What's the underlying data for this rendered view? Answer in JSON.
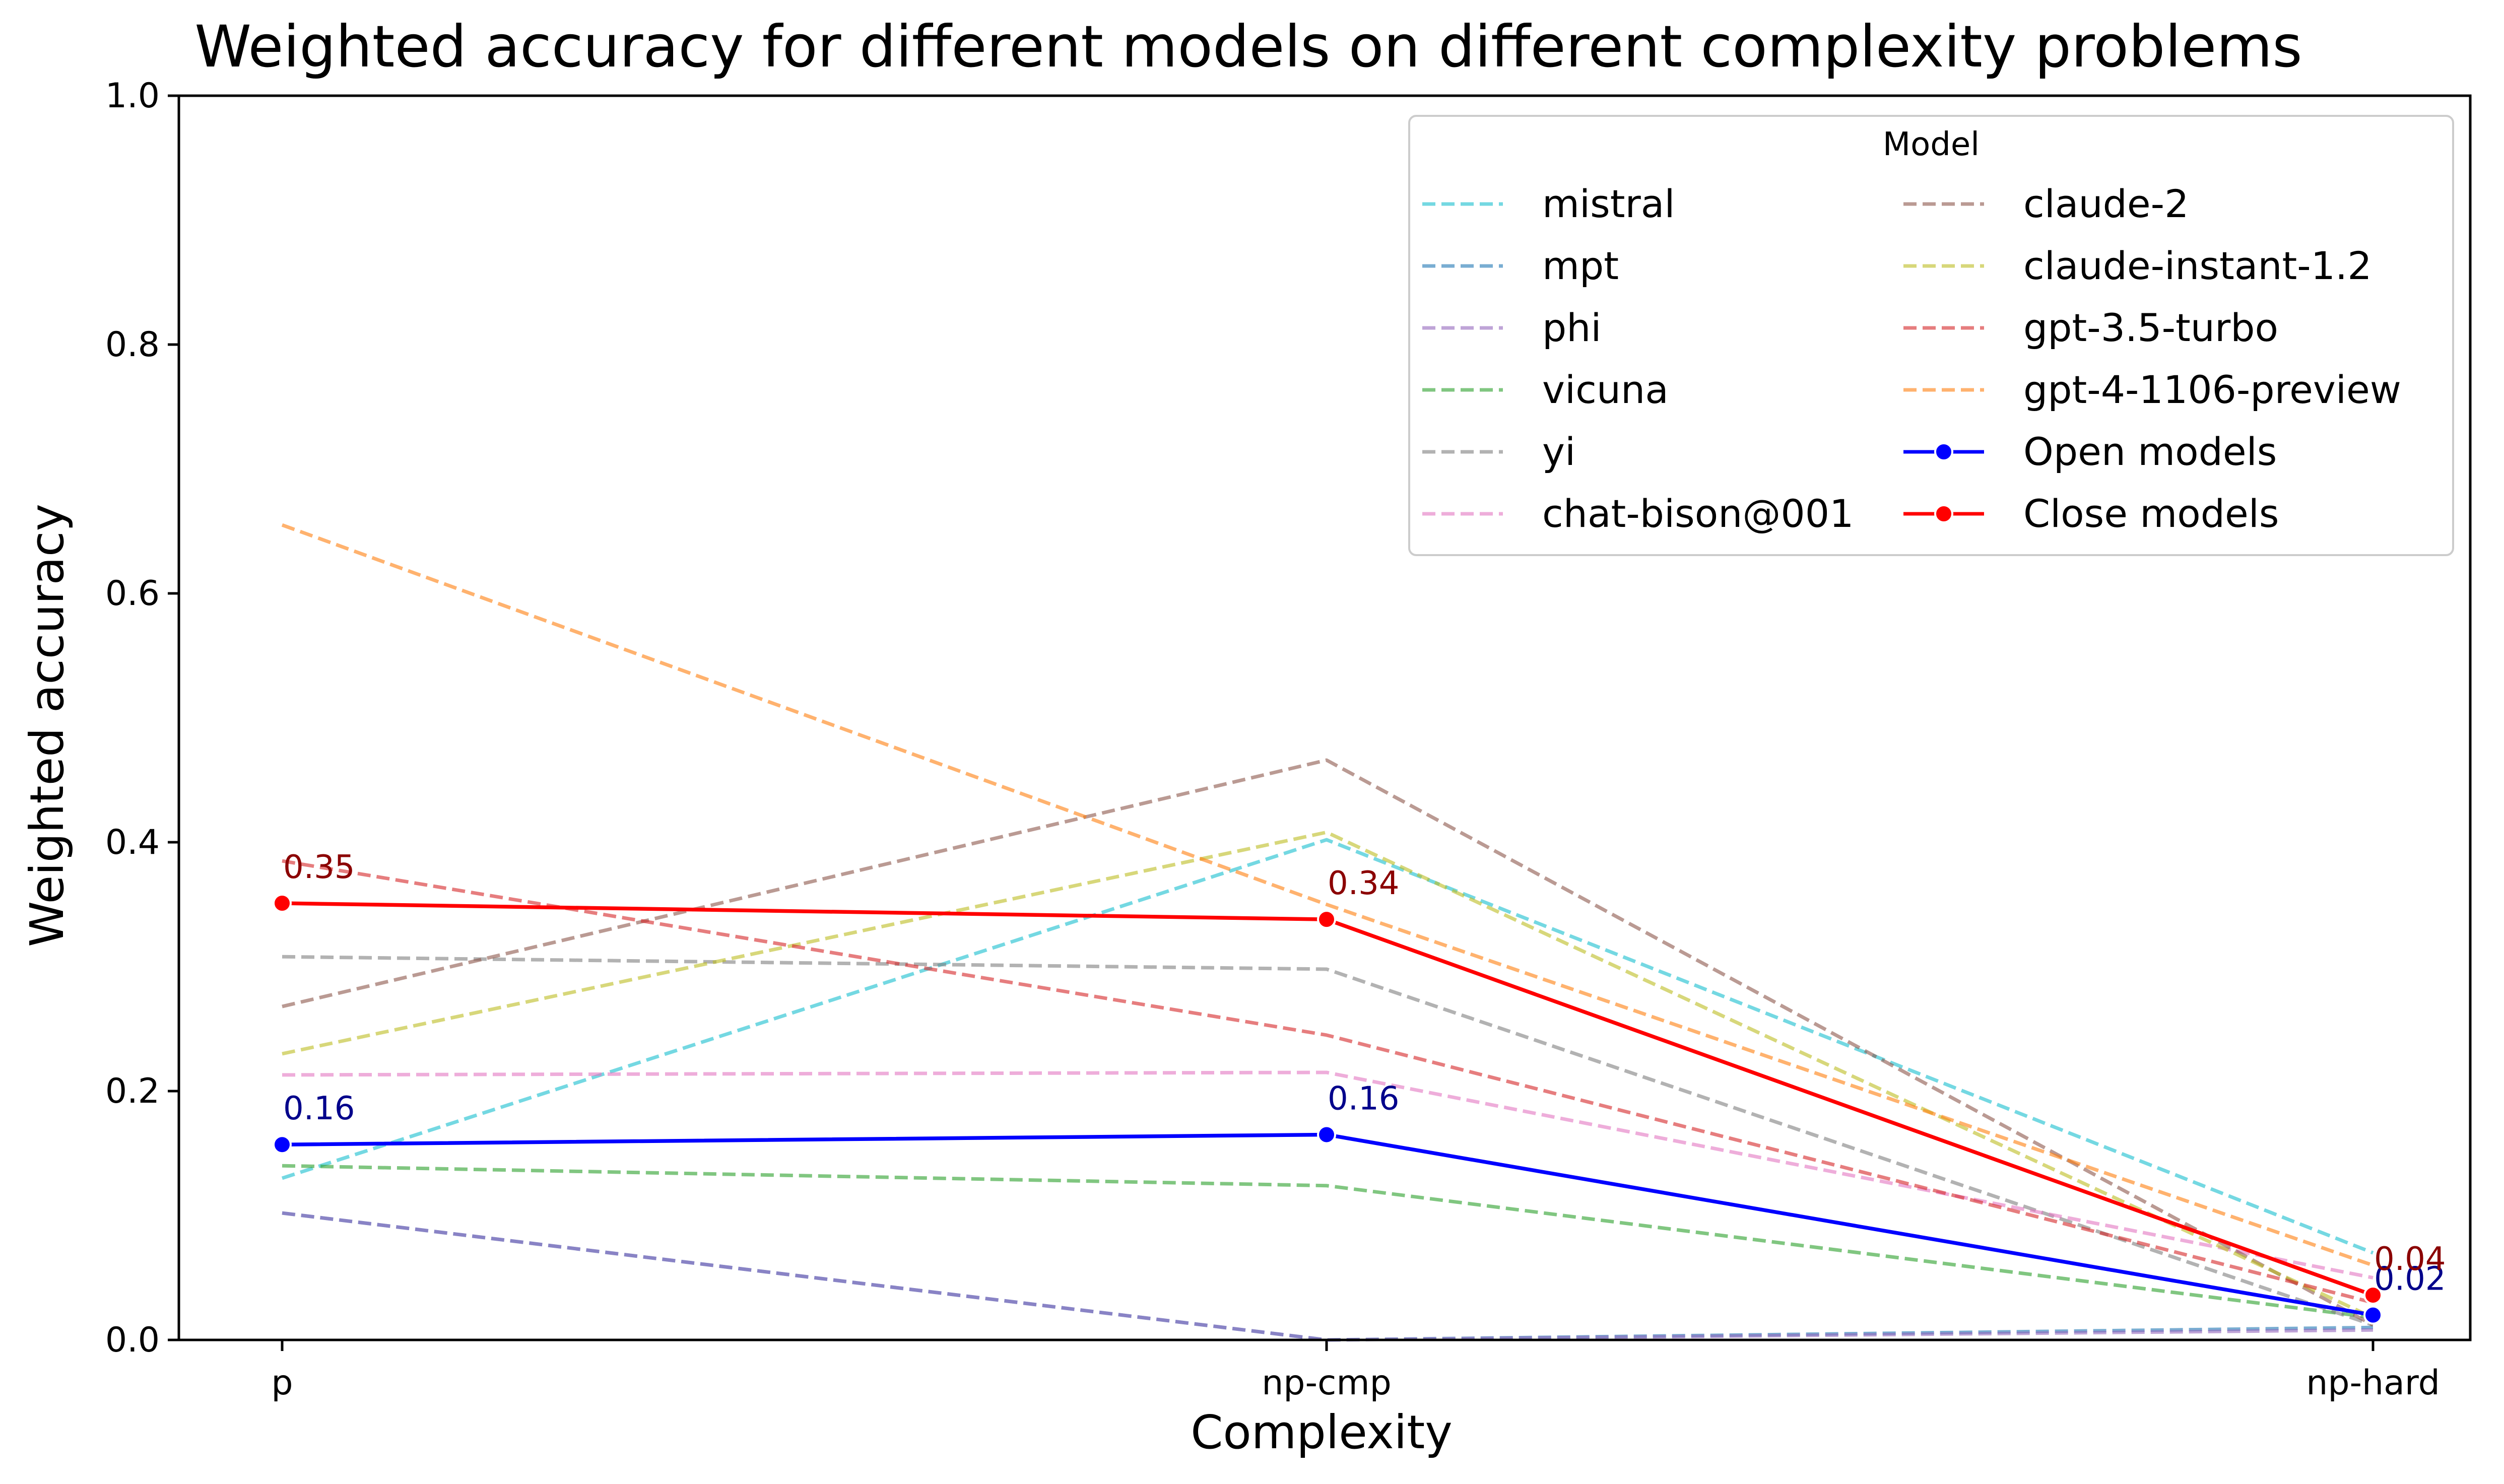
{
  "chart_data": {
    "type": "line",
    "title": "Weighted accuracy for different models on different complexity problems",
    "xlabel": "Complexity",
    "ylabel": "Weighted accuracy",
    "categories": [
      "p",
      "np-cmp",
      "np-hard"
    ],
    "ylim": [
      0,
      1.0
    ],
    "yticks": [
      "0.0",
      "0.2",
      "0.4",
      "0.6",
      "0.8",
      "1.0"
    ],
    "grid": false,
    "legend": {
      "title": "Model",
      "placement": "top-right",
      "columns": 2
    },
    "series": [
      {
        "name": "mistral",
        "values": [
          0.13,
          0.402,
          0.07
        ],
        "color": "#17becf",
        "dashed": true
      },
      {
        "name": "mpt",
        "values": [
          0.102,
          0.0,
          0.01
        ],
        "color": "#1f77b4",
        "dashed": true
      },
      {
        "name": "phi",
        "values": [
          0.102,
          0.0,
          0.008
        ],
        "color": "#9467bd",
        "dashed": true
      },
      {
        "name": "vicuna",
        "values": [
          0.14,
          0.124,
          0.018
        ],
        "color": "#2ca02c",
        "dashed": true
      },
      {
        "name": "yi",
        "values": [
          0.308,
          0.298,
          0.012
        ],
        "color": "#7f7f7f",
        "dashed": true
      },
      {
        "name": "chat-bison@001",
        "values": [
          0.213,
          0.215,
          0.05
        ],
        "color": "#e377c2",
        "dashed": true
      },
      {
        "name": "claude-2",
        "values": [
          0.268,
          0.466,
          0.012
        ],
        "color": "#8c564b",
        "dashed": true
      },
      {
        "name": "claude-instant-1.2",
        "values": [
          0.23,
          0.408,
          0.018
        ],
        "color": "#bcbd22",
        "dashed": true
      },
      {
        "name": "gpt-3.5-turbo",
        "values": [
          0.385,
          0.245,
          0.03
        ],
        "color": "#d62728",
        "dashed": true
      },
      {
        "name": "gpt-4-1106-preview",
        "values": [
          0.655,
          0.35,
          0.06
        ],
        "color": "#ff7f0e",
        "dashed": true
      },
      {
        "name": "Open models",
        "values": [
          0.157,
          0.165,
          0.02
        ],
        "color": "#0000ff",
        "dashed": false,
        "markers": true,
        "labels": [
          "0.16",
          "0.16",
          "0.02"
        ],
        "label_color": "#00008b"
      },
      {
        "name": "Close models",
        "values": [
          0.351,
          0.338,
          0.036
        ],
        "color": "#ff0000",
        "dashed": false,
        "markers": true,
        "labels": [
          "0.35",
          "0.34",
          "0.04"
        ],
        "label_color": "#8b0000"
      }
    ]
  }
}
